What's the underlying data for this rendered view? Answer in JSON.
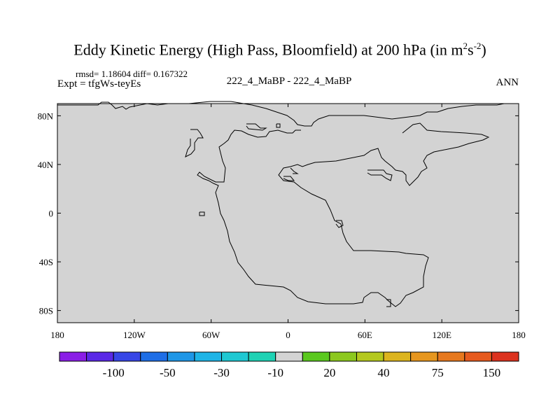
{
  "title": {
    "text": "Eddy Kinetic Energy (High Pass, Bloomfield) at 200 hPa (in m",
    "sup1": "2",
    "mid": "s",
    "sup2": "-2",
    "end": ")"
  },
  "stats": "rmsd= 1.18604 diff= 0.167322",
  "expt": "Expt = tfgWs-teyEs",
  "center_label": "222_4_MaBP - 222_4_MaBP",
  "season": "ANN",
  "map": {
    "background_color": "#d3d3d3",
    "coastline_color": "#000000",
    "y_ticks": [
      {
        "value": 80,
        "label": "80N"
      },
      {
        "value": 40,
        "label": "40N"
      },
      {
        "value": 0,
        "label": "0"
      },
      {
        "value": -40,
        "label": "40S"
      },
      {
        "value": -80,
        "label": "80S"
      }
    ],
    "x_ticks": [
      {
        "value": -180,
        "label": "180"
      },
      {
        "value": -120,
        "label": "120W"
      },
      {
        "value": -60,
        "label": "60W"
      },
      {
        "value": 0,
        "label": "0"
      },
      {
        "value": 60,
        "label": "60E"
      },
      {
        "value": 120,
        "label": "120E"
      },
      {
        "value": 180,
        "label": "180"
      }
    ],
    "lon_range": [
      -180,
      180
    ],
    "lat_range": [
      -90,
      90
    ]
  },
  "colorbar": {
    "colors": [
      "#8a1ee6",
      "#5a28e6",
      "#3746e6",
      "#1e6ee6",
      "#1e96e6",
      "#1eb4e6",
      "#1ec8d2",
      "#1ed2b4",
      "#d3d3d3",
      "#5ac81e",
      "#8cc81e",
      "#b4c81e",
      "#dcb41e",
      "#e6961e",
      "#e6781e",
      "#e65a1e",
      "#dc321e"
    ],
    "labels": [
      {
        "after_box": 2,
        "text": "-100"
      },
      {
        "after_box": 4,
        "text": "-50"
      },
      {
        "after_box": 6,
        "text": "-30"
      },
      {
        "after_box": 8,
        "text": "-10"
      },
      {
        "after_box": 10,
        "text": "20"
      },
      {
        "after_box": 12,
        "text": "40"
      },
      {
        "after_box": 14,
        "text": "75"
      },
      {
        "after_box": 16,
        "text": "150"
      }
    ]
  }
}
